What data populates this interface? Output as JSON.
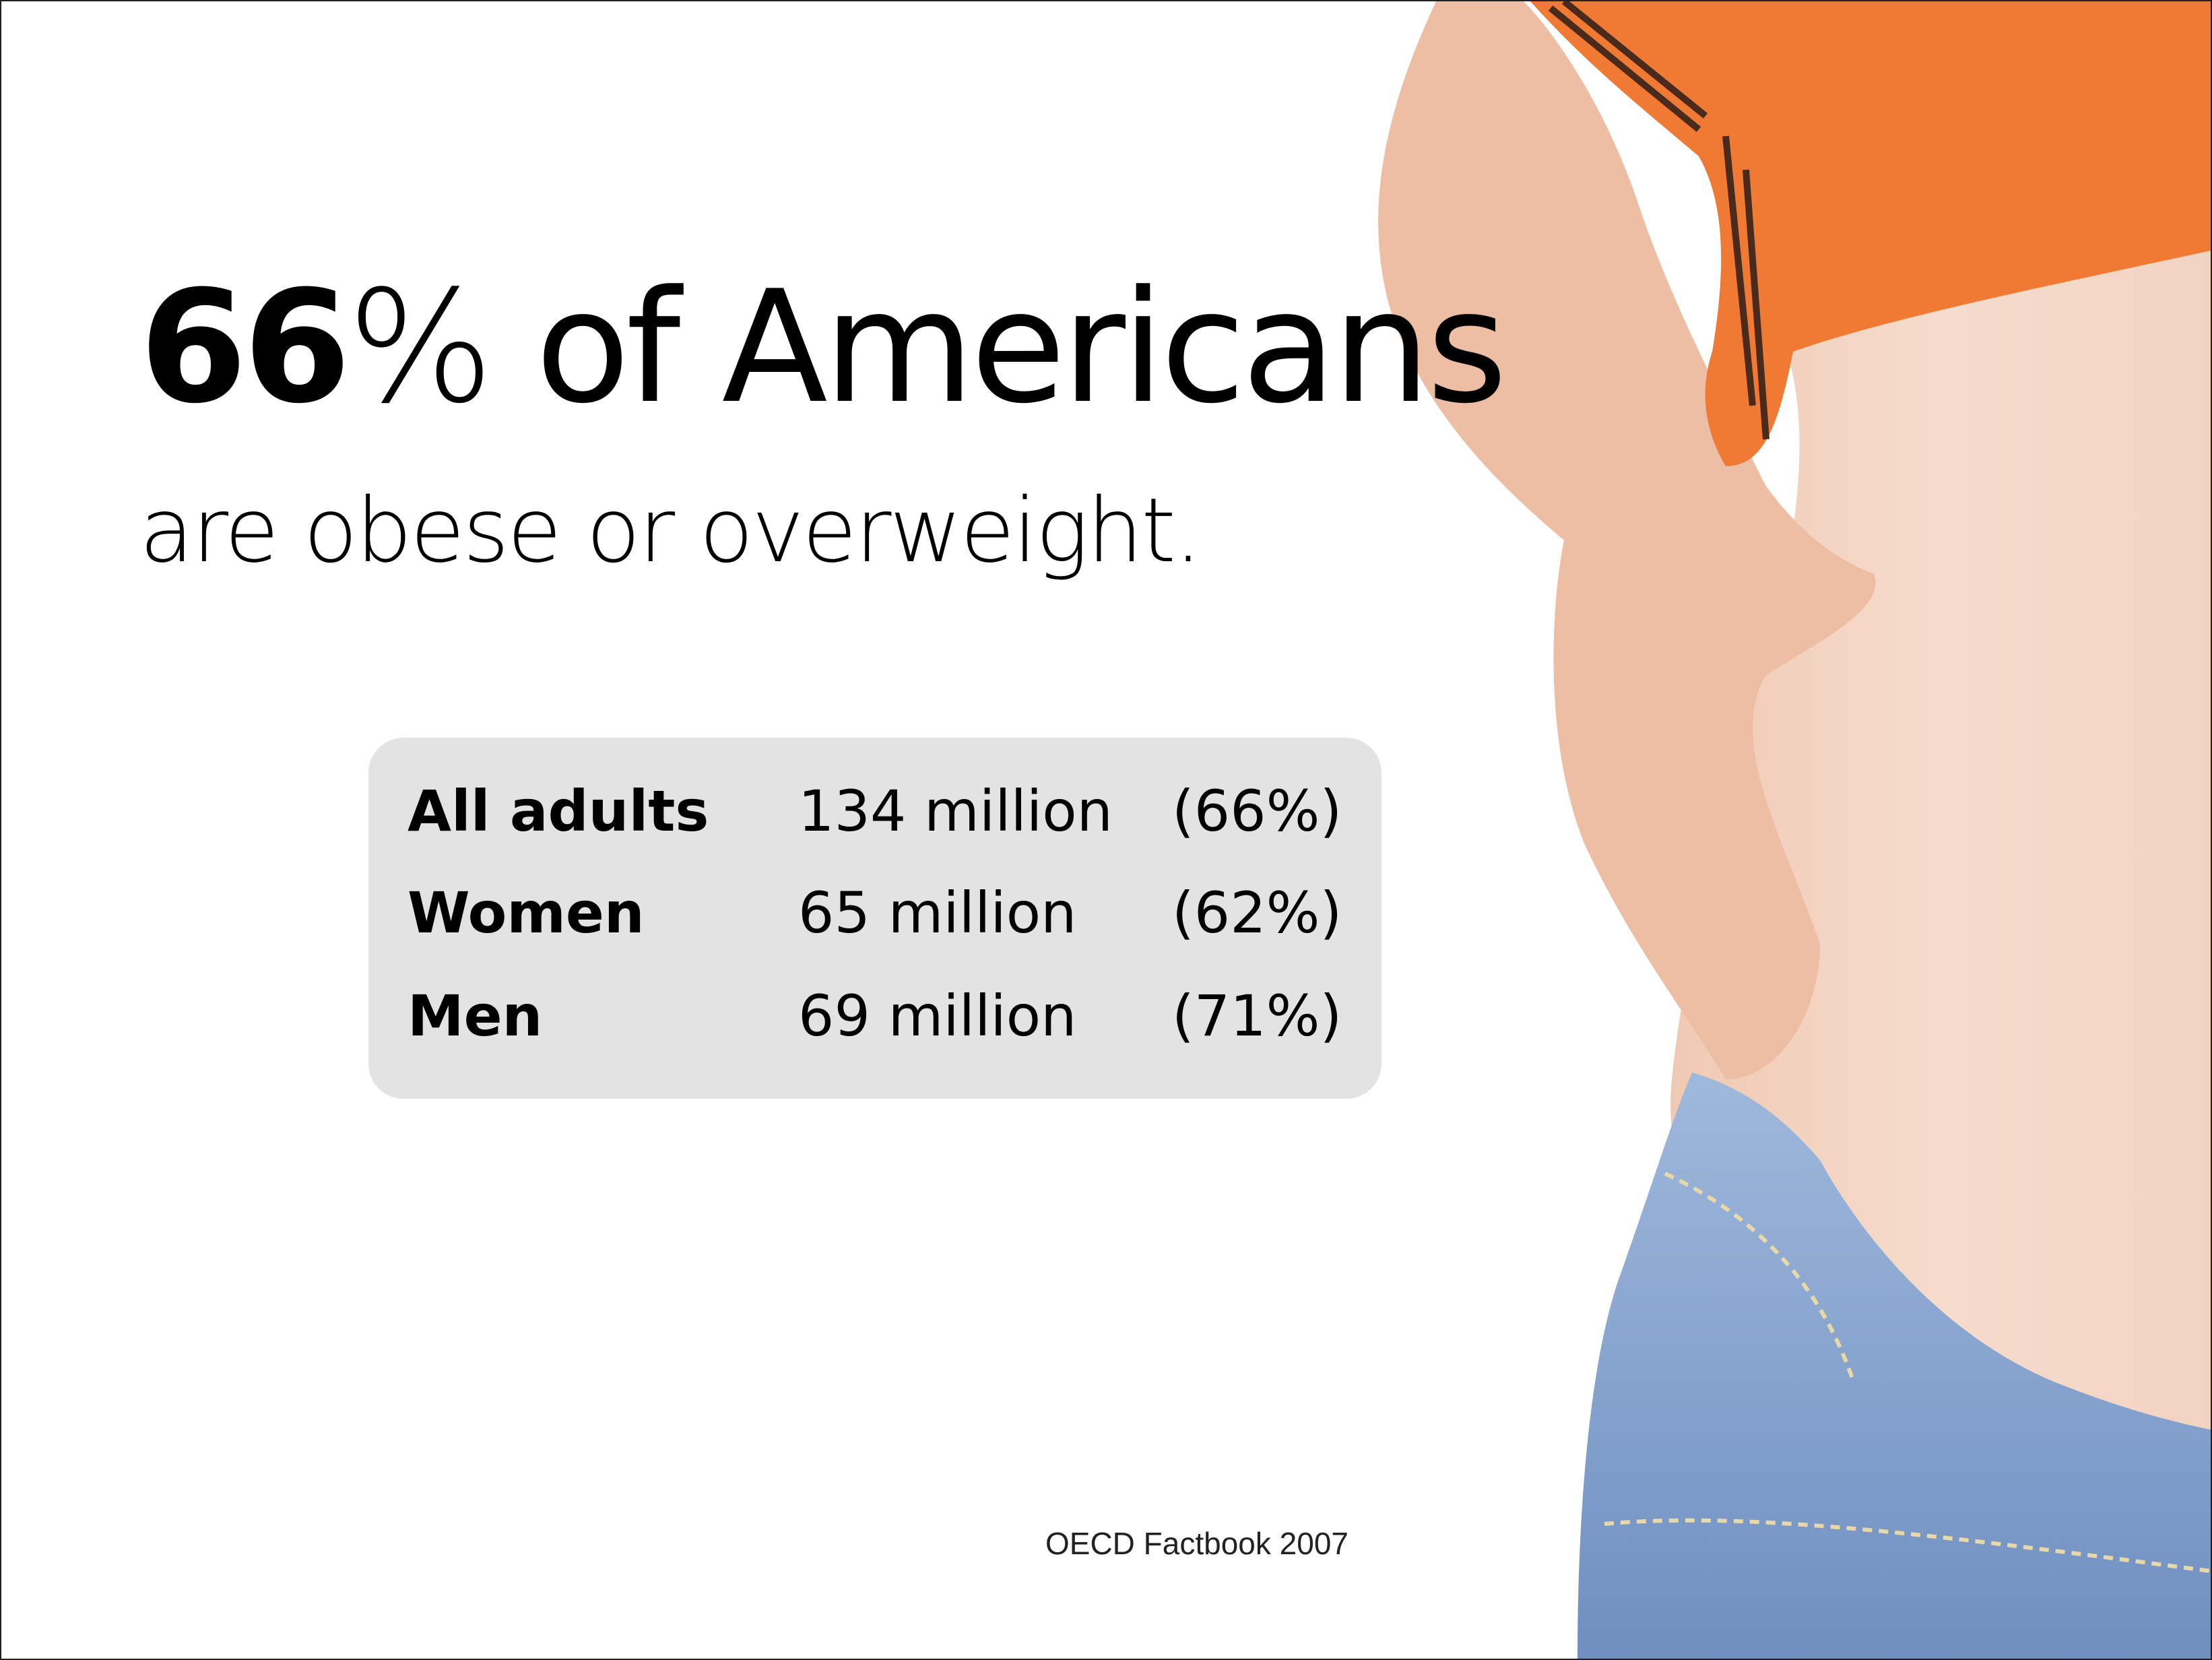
{
  "slide": {
    "headline": {
      "number": "66",
      "symbol": "%",
      "rest": "of Americans"
    },
    "subtitle": "are obese or overweight.",
    "table": {
      "rows": [
        [
          "All adults",
          "134 million",
          "(66%)"
        ],
        [
          "Women",
          "65 million",
          "(62%)"
        ],
        [
          "Men",
          "69 million",
          "(71%)"
        ]
      ]
    },
    "source": "OECD Factbook 2007"
  }
}
